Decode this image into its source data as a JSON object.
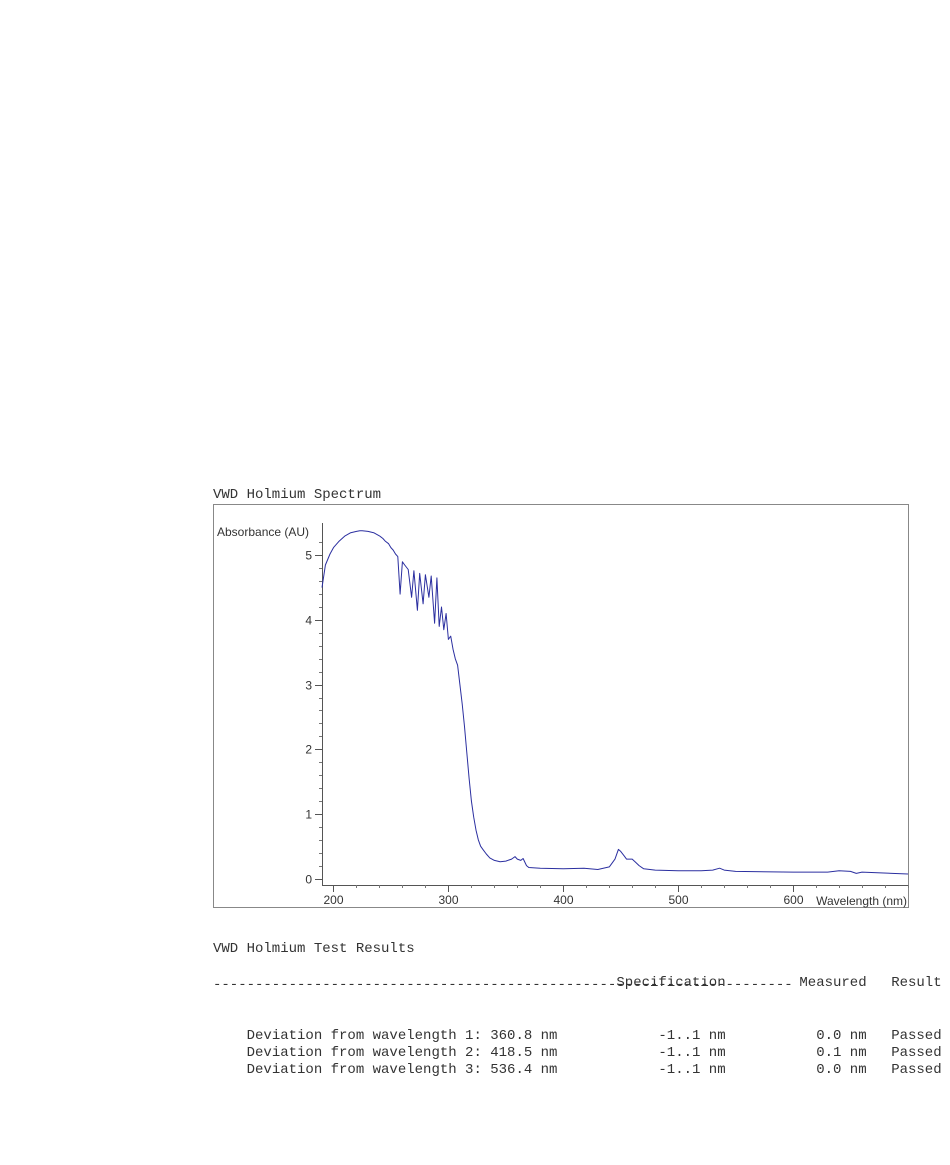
{
  "chart_title": "VWD Holmium Spectrum",
  "chart_data": {
    "type": "line",
    "ylabel": "Absorbance (AU)",
    "xlabel": "Wavelength (nm)",
    "xlim": [
      190,
      700
    ],
    "ylim": [
      -0.1,
      5.5
    ],
    "x_ticks": [
      200,
      300,
      400,
      500,
      600
    ],
    "y_ticks": [
      0,
      1,
      2,
      3,
      4,
      5
    ],
    "line_color": "#2b2fa0",
    "series": [
      {
        "x": [
          190,
          193,
          197,
          200,
          205,
          210,
          215,
          220,
          223,
          225,
          230,
          235,
          240,
          243,
          245,
          248,
          250,
          252,
          254,
          256,
          258,
          260,
          262,
          265,
          268,
          270,
          273,
          275,
          278,
          280,
          283,
          285,
          288,
          290,
          292,
          294,
          296,
          298,
          300,
          302,
          304,
          306,
          308,
          310,
          312,
          314,
          316,
          318,
          320,
          322,
          324,
          326,
          328,
          330,
          333,
          336,
          340,
          345,
          350,
          355,
          358,
          360,
          363,
          365,
          368,
          370,
          380,
          400,
          418,
          430,
          440,
          445,
          448,
          450,
          453,
          455,
          460,
          463,
          466,
          470,
          480,
          500,
          520,
          530,
          536,
          540,
          550,
          600,
          630,
          640,
          650,
          655,
          660,
          700
        ],
        "y": [
          4.5,
          4.85,
          5.02,
          5.12,
          5.22,
          5.3,
          5.35,
          5.37,
          5.38,
          5.38,
          5.37,
          5.35,
          5.3,
          5.26,
          5.22,
          5.18,
          5.12,
          5.08,
          5.02,
          4.98,
          4.4,
          4.9,
          4.85,
          4.78,
          4.35,
          4.76,
          4.15,
          4.72,
          4.25,
          4.7,
          4.35,
          4.68,
          3.95,
          4.65,
          3.9,
          4.2,
          3.85,
          4.1,
          3.7,
          3.75,
          3.55,
          3.4,
          3.3,
          3.0,
          2.7,
          2.35,
          1.95,
          1.55,
          1.2,
          0.95,
          0.75,
          0.6,
          0.5,
          0.45,
          0.38,
          0.32,
          0.28,
          0.26,
          0.27,
          0.3,
          0.34,
          0.3,
          0.28,
          0.31,
          0.2,
          0.17,
          0.16,
          0.15,
          0.16,
          0.14,
          0.18,
          0.3,
          0.45,
          0.42,
          0.35,
          0.3,
          0.3,
          0.25,
          0.2,
          0.15,
          0.13,
          0.12,
          0.12,
          0.13,
          0.16,
          0.13,
          0.11,
          0.1,
          0.1,
          0.12,
          0.11,
          0.08,
          0.1,
          0.07
        ]
      }
    ]
  },
  "results": {
    "title": "VWD Holmium Test Results",
    "headers": [
      "Specification",
      "Measured",
      "Result"
    ],
    "separator": "---------------------------------------------------------------------",
    "rows": [
      {
        "label": "Deviation from wavelength 1: 360.8 nm",
        "spec": "-1..1 nm",
        "measured": "0.0 nm",
        "result": "Passed"
      },
      {
        "label": "Deviation from wavelength 2: 418.5 nm",
        "spec": "-1..1 nm",
        "measured": "0.1 nm",
        "result": "Passed"
      },
      {
        "label": "Deviation from wavelength 3: 536.4 nm",
        "spec": "-1..1 nm",
        "measured": "0.0 nm",
        "result": "Passed"
      }
    ]
  }
}
